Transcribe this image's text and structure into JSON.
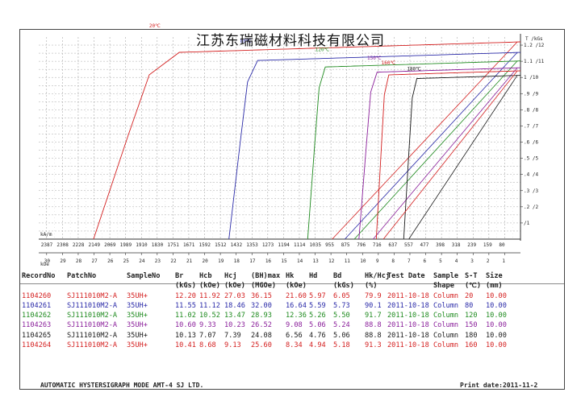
{
  "title": "江苏东瑞磁材料科技有限公司",
  "footer": {
    "left": "AUTOMATIC  HYSTERSIGRAPH  MODE  AMT-4     SJ  LTD.",
    "right": "Print date:2011-11-2"
  },
  "table": {
    "headers": [
      "RecordNo",
      "PatchNo",
      "SampleNo",
      "Br",
      "Hcb",
      "Hcj",
      "(BH)max",
      "Hk",
      "Hd",
      "Bd",
      "Hk/Hcj",
      "Test Date",
      "Sample",
      "S-T",
      "Size"
    ],
    "units": [
      "",
      "",
      "",
      "(kGs)",
      "(kOe)",
      "(kOe)",
      "(MGOe)",
      "(kOe)",
      "",
      "(kGs)",
      "(%)",
      "",
      "Shape",
      "(℃)",
      "(mm)"
    ],
    "rows": [
      {
        "color": "#d42020",
        "cells": [
          "1104260",
          "SJ111010M2-A",
          "35UH+",
          "12.20",
          "11.92",
          "27.03",
          "36.15",
          "21.60",
          "5.97",
          "6.05",
          "79.9",
          "2011-10-18",
          "Column",
          "20",
          "10.00"
        ]
      },
      {
        "color": "#2a2aa8",
        "cells": [
          "1104261",
          "SJ111010M2-A",
          "35UH+",
          "11.55",
          "11.12",
          "18.46",
          "32.00",
          "16.64",
          "5.59",
          "5.73",
          "90.1",
          "2011-10-18",
          "Column",
          "80",
          "10.00"
        ]
      },
      {
        "color": "#1e8a1e",
        "cells": [
          "1104262",
          "SJ111010M2-A",
          "35UH+",
          "11.02",
          "10.52",
          "13.47",
          "28.93",
          "12.36",
          "5.26",
          "5.50",
          "91.7",
          "2011-10-18",
          "Column",
          "120",
          "10.00"
        ]
      },
      {
        "color": "#8a1e9a",
        "cells": [
          "1104263",
          "SJ111010M2-A",
          "35UH+",
          "10.60",
          "9.33",
          "10.23",
          "26.52",
          "9.08",
          "5.06",
          "5.24",
          "88.8",
          "2011-10-18",
          "Column",
          "150",
          "10.00"
        ]
      },
      {
        "color": "#1a1a1a",
        "cells": [
          "1104265",
          "SJ111010M2-A",
          "35UH+",
          "10.13",
          "7.07",
          "7.39",
          "24.08",
          "6.56",
          "4.76",
          "5.06",
          "88.8",
          "2011-10-18",
          "Column",
          "180",
          "10.00"
        ]
      },
      {
        "color": "#d42020",
        "cells": [
          "1104264",
          "SJ111010M2-A",
          "35UH+",
          "10.41",
          "8.68",
          "9.13",
          "25.60",
          "8.34",
          "4.94",
          "5.18",
          "91.3",
          "2011-10-18",
          "Column",
          "160",
          "10.00"
        ]
      }
    ]
  },
  "chart_data": {
    "type": "line",
    "title": "江苏东瑞磁材料科技有限公司",
    "xlabel_kam": "kA/m",
    "xlabel_koe": "kOe",
    "ylabel_right": "T /kGs",
    "x_kOe_ticks": [
      30,
      29,
      28,
      27,
      26,
      25,
      24,
      23,
      22,
      21,
      20,
      19,
      18,
      17,
      16,
      15,
      14,
      13,
      12,
      11,
      10,
      9,
      8,
      7,
      6,
      5,
      4,
      3,
      2,
      1
    ],
    "x_kam_ticks": [
      2387,
      2308,
      2228,
      2149,
      2069,
      1989,
      1910,
      1830,
      1751,
      1671,
      1592,
      1512,
      1432,
      1353,
      1273,
      1194,
      1114,
      1035,
      955,
      875,
      796,
      716,
      637,
      557,
      477,
      398,
      318,
      239,
      159,
      80
    ],
    "y_T_ticks": [
      0.1,
      0.2,
      0.3,
      0.4,
      0.5,
      0.6,
      0.7,
      0.8,
      0.9,
      1.0,
      1.1,
      1.2
    ],
    "y_ticks_labels": [
      "/1",
      ".2 /2",
      ".3 /3",
      ".4 /4",
      ".5 /5",
      ".6 /6",
      ".7 /7",
      ".8 /8",
      ".9 /9",
      "1 /10",
      "1.1 /11",
      "1.2 /12"
    ],
    "xlim_kOe": [
      30.5,
      0
    ],
    "ylim_T": [
      0,
      1.25
    ],
    "grid": true,
    "series": [
      {
        "name": "20℃",
        "color": "#d42020",
        "Br": 12.2,
        "Hcb": 11.92,
        "Hcj": 27.03,
        "Hk": 21.6
      },
      {
        "name": "80℃",
        "color": "#2a2aa8",
        "Br": 11.55,
        "Hcb": 11.12,
        "Hcj": 18.46,
        "Hk": 16.64
      },
      {
        "name": "120℃",
        "color": "#1e8a1e",
        "Br": 11.02,
        "Hcb": 10.52,
        "Hcj": 13.47,
        "Hk": 12.36
      },
      {
        "name": "150℃",
        "color": "#8a1e9a",
        "Br": 10.6,
        "Hcb": 9.33,
        "Hcj": 10.23,
        "Hk": 9.08
      },
      {
        "name": "180℃",
        "color": "#1a1a1a",
        "Br": 10.13,
        "Hcb": 7.07,
        "Hcj": 7.39,
        "Hk": 6.56
      },
      {
        "name": "160℃",
        "color": "#d42020",
        "Br": 10.41,
        "Hcb": 8.68,
        "Hcj": 9.13,
        "Hk": 8.34
      }
    ]
  }
}
